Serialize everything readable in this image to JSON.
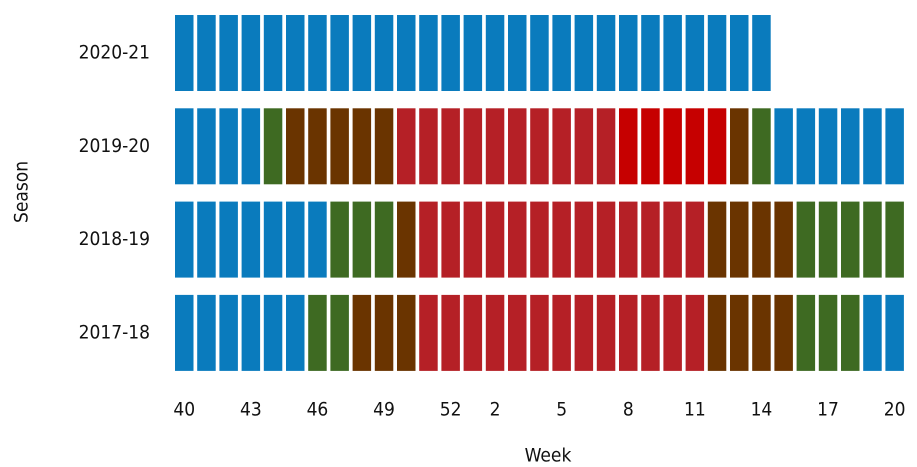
{
  "chart_data": {
    "type": "tile",
    "x_label": "Week",
    "y_label": "Season",
    "categories": [
      40,
      null,
      null,
      43,
      null,
      null,
      46,
      null,
      null,
      49,
      null,
      null,
      52,
      null,
      2,
      null,
      null,
      5,
      null,
      null,
      8,
      null,
      null,
      11,
      null,
      null,
      14,
      null,
      null,
      17,
      null,
      null,
      20
    ],
    "rows": [
      {
        "name": "2020-21",
        "colors": [
          "#0a7bbd",
          "#0a7bbd",
          "#0a7bbd",
          "#0a7bbd",
          "#0a7bbd",
          "#0a7bbd",
          "#0a7bbd",
          "#0a7bbd",
          "#0a7bbd",
          "#0a7bbd",
          "#0a7bbd",
          "#0a7bbd",
          "#0a7bbd",
          "#0a7bbd",
          "#0a7bbd",
          "#0a7bbd",
          "#0a7bbd",
          "#0a7bbd",
          "#0a7bbd",
          "#0a7bbd",
          "#0a7bbd",
          "#0a7bbd",
          "#0a7bbd",
          "#0a7bbd",
          "#0a7bbd",
          "#0a7bbd",
          "#0a7bbd",
          null,
          null,
          null,
          null,
          null,
          null
        ]
      },
      {
        "name": "2019-20",
        "colors": [
          "#0a7bbd",
          "#0a7bbd",
          "#0a7bbd",
          "#0a7bbd",
          "#3e6a22",
          "#6a3400",
          "#6a3400",
          "#6a3400",
          "#6a3400",
          "#6a3400",
          "#b52026",
          "#b52026",
          "#b52026",
          "#b52026",
          "#b52026",
          "#b52026",
          "#b52026",
          "#b52026",
          "#b52026",
          "#b52026",
          "#c60000",
          "#c60000",
          "#c60000",
          "#c60000",
          "#c60000",
          "#6a3400",
          "#3e6a22",
          "#0a7bbd",
          "#0a7bbd",
          "#0a7bbd",
          "#0a7bbd",
          "#0a7bbd",
          "#0a7bbd"
        ]
      },
      {
        "name": "2018-19",
        "colors": [
          "#0a7bbd",
          "#0a7bbd",
          "#0a7bbd",
          "#0a7bbd",
          "#0a7bbd",
          "#0a7bbd",
          "#0a7bbd",
          "#3e6a22",
          "#3e6a22",
          "#3e6a22",
          "#6a3400",
          "#b52026",
          "#b52026",
          "#b52026",
          "#b52026",
          "#b52026",
          "#b52026",
          "#b52026",
          "#b52026",
          "#b52026",
          "#b52026",
          "#b52026",
          "#b52026",
          "#b52026",
          "#6a3400",
          "#6a3400",
          "#6a3400",
          "#6a3400",
          "#3e6a22",
          "#3e6a22",
          "#3e6a22",
          "#3e6a22",
          "#3e6a22"
        ]
      },
      {
        "name": "2017-18",
        "colors": [
          "#0a7bbd",
          "#0a7bbd",
          "#0a7bbd",
          "#0a7bbd",
          "#0a7bbd",
          "#0a7bbd",
          "#3e6a22",
          "#3e6a22",
          "#6a3400",
          "#6a3400",
          "#6a3400",
          "#b52026",
          "#b52026",
          "#b52026",
          "#b52026",
          "#b52026",
          "#b52026",
          "#b52026",
          "#b52026",
          "#b52026",
          "#b52026",
          "#b52026",
          "#b52026",
          "#b52026",
          "#6a3400",
          "#6a3400",
          "#6a3400",
          "#6a3400",
          "#3e6a22",
          "#3e6a22",
          "#3e6a22",
          "#0a7bbd",
          "#0a7bbd"
        ]
      }
    ]
  }
}
